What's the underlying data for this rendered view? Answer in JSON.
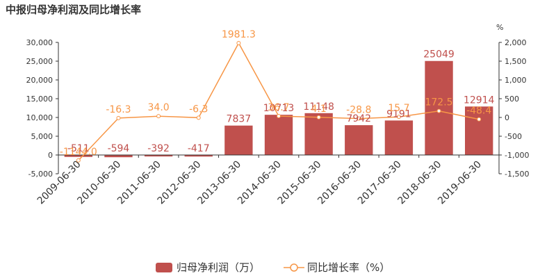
{
  "chart_data": {
    "type": "bar",
    "title": "中报归母净利润及同比增长率",
    "categories": [
      "2009-06-30",
      "2010-06-30",
      "2011-06-30",
      "2012-06-30",
      "2013-06-30",
      "2014-06-30",
      "2015-06-30",
      "2016-06-30",
      "2017-06-30",
      "2018-06-30",
      "2019-06-30"
    ],
    "series": [
      {
        "name": "归母净利润（万）",
        "type": "bar",
        "axis": "left",
        "color": "#c0504d",
        "values": [
          -511,
          -594,
          -392,
          -417,
          7837,
          10713,
          11148,
          7942,
          9191,
          25049,
          12914
        ],
        "labels": [
          "-511",
          "-594",
          "-392",
          "-417",
          "7837",
          "10713",
          "11148",
          "7942",
          "9191",
          "25049",
          "12914"
        ]
      },
      {
        "name": "同比增长率（%）",
        "type": "line",
        "axis": "right",
        "color": "#f79646",
        "values": [
          -1144.0,
          -16.3,
          34.0,
          -6.3,
          1981.3,
          36.7,
          4.1,
          -28.8,
          15.7,
          172.5,
          -48.4
        ],
        "labels": [
          "-1144.0",
          "-16.3",
          "34.0",
          "-6.3",
          "1981.3",
          "36.7",
          "4.1",
          "-28.8",
          "15.7",
          "172.5",
          "-48.4"
        ]
      }
    ],
    "y_left": {
      "min": -5000,
      "max": 30000,
      "ticks": [
        -5000,
        0,
        5000,
        10000,
        15000,
        20000,
        25000,
        30000
      ],
      "tick_labels": [
        "-5,000",
        "0",
        "5,000",
        "10,000",
        "15,000",
        "20,000",
        "25,000",
        "30,000"
      ]
    },
    "y_right": {
      "unit": "%",
      "min": -1500,
      "max": 2000,
      "ticks": [
        -1500,
        -1000,
        -500,
        0,
        500,
        1000,
        1500,
        2000
      ],
      "tick_labels": [
        "-1,500",
        "-1,000",
        "-500",
        "0",
        "500",
        "1,000",
        "1,500",
        "2,000"
      ]
    },
    "grid": false,
    "legend_position": "bottom",
    "legend": [
      "归母净利润（万）",
      "同比增长率（%）"
    ]
  }
}
